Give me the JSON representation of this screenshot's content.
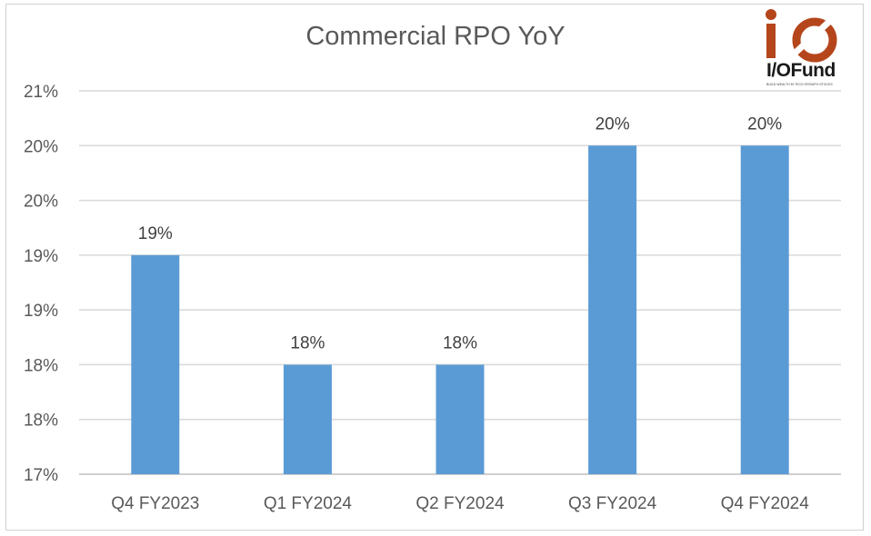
{
  "chart_data": {
    "type": "bar",
    "title": "Commercial RPO YoY",
    "categories": [
      "Q4 FY2023",
      "Q1 FY2024",
      "Q2 FY2024",
      "Q3 FY2024",
      "Q4 FY2024"
    ],
    "values": [
      19.0,
      18.0,
      18.0,
      20.0,
      20.0
    ],
    "data_labels": [
      "19%",
      "18%",
      "18%",
      "20%",
      "20%"
    ],
    "y_ticks": [
      17,
      17.5,
      18,
      18.5,
      19,
      19.5,
      20,
      20.5
    ],
    "y_tick_labels": [
      "17%",
      "18%",
      "18%",
      "19%",
      "19%",
      "20%",
      "20%",
      "21%"
    ],
    "ylim": [
      17,
      20.5
    ],
    "xlabel": "",
    "ylabel": "",
    "grid": true,
    "legend": "none",
    "bar_color": "#5b9bd5"
  },
  "logo": {
    "name": "I/OFund",
    "tagline": "BUILD WEALTH IN TECH GROWTH STOCKS",
    "color": "#b5451b"
  }
}
